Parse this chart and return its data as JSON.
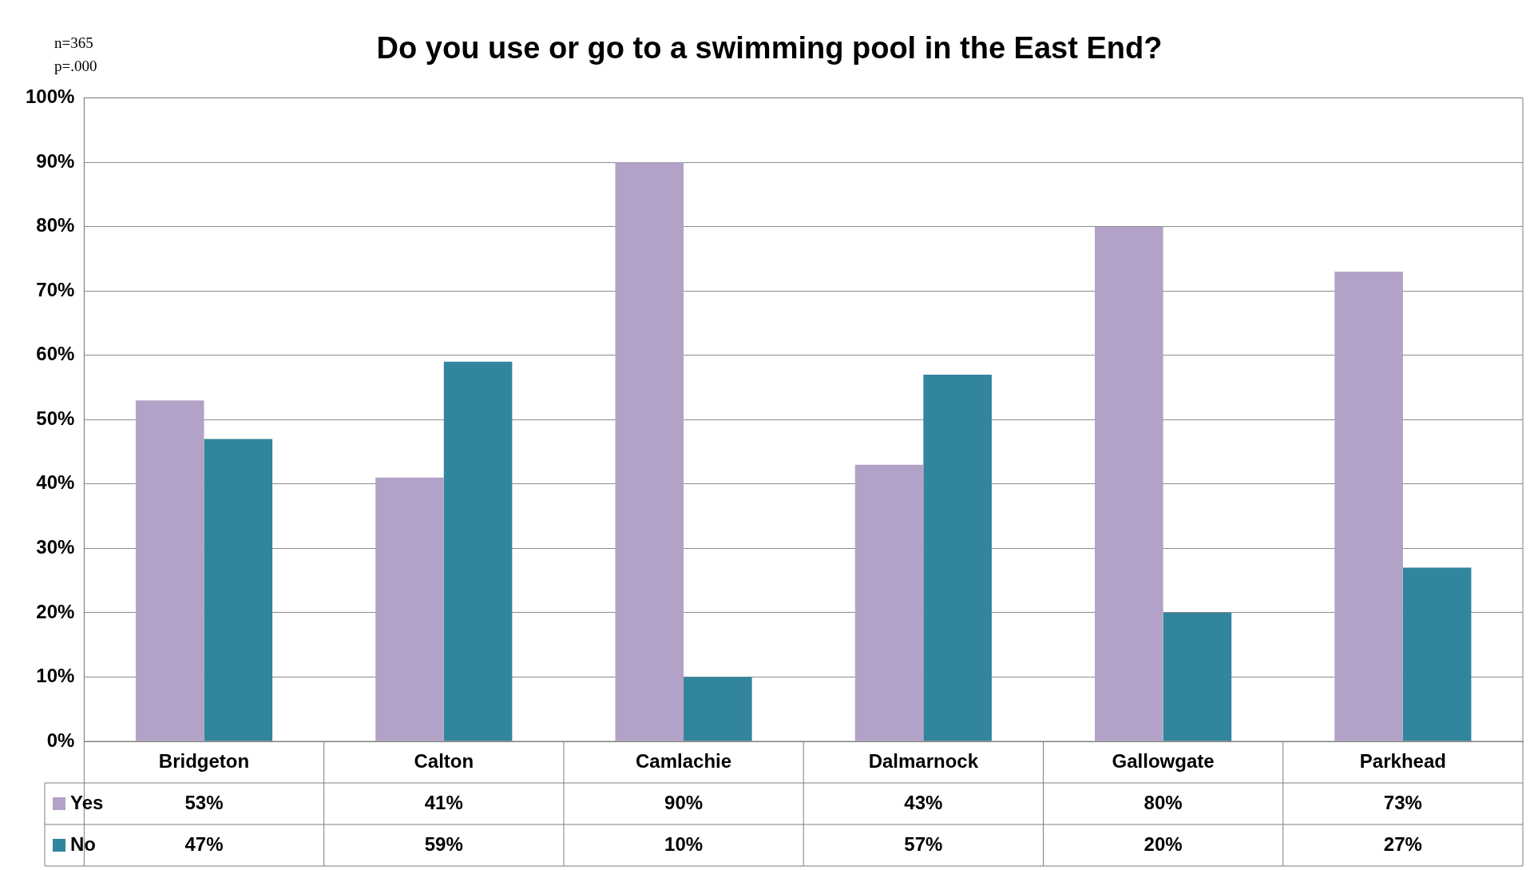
{
  "chart_data": {
    "type": "bar",
    "title": "Do you use or go to a swimming pool in the East End?",
    "annotations": [
      "n=365",
      "p=.000"
    ],
    "categories": [
      "Bridgeton",
      "Calton",
      "Camlachie",
      "Dalmarnock",
      "Gallowgate",
      "Parkhead"
    ],
    "series": [
      {
        "name": "Yes",
        "color": "#b3a2c7",
        "values": [
          53,
          41,
          90,
          43,
          80,
          73
        ],
        "value_labels": [
          "53%",
          "41%",
          "90%",
          "43%",
          "80%",
          "73%"
        ]
      },
      {
        "name": "No",
        "color": "#31859c",
        "values": [
          47,
          59,
          10,
          57,
          20,
          27
        ],
        "value_labels": [
          "47%",
          "59%",
          "10%",
          "57%",
          "20%",
          "27%"
        ]
      }
    ],
    "ylim": [
      0,
      100
    ],
    "yticks": [
      {
        "value": 0,
        "label": "0%"
      },
      {
        "value": 10,
        "label": "10%"
      },
      {
        "value": 20,
        "label": "20%"
      },
      {
        "value": 30,
        "label": "30%"
      },
      {
        "value": 40,
        "label": "40%"
      },
      {
        "value": 50,
        "label": "50%"
      },
      {
        "value": 60,
        "label": "60%"
      },
      {
        "value": 70,
        "label": "70%"
      },
      {
        "value": 80,
        "label": "80%"
      },
      {
        "value": 90,
        "label": "90%"
      },
      {
        "value": 100,
        "label": "100%"
      }
    ],
    "grid": "y",
    "legend": "bottom left"
  }
}
